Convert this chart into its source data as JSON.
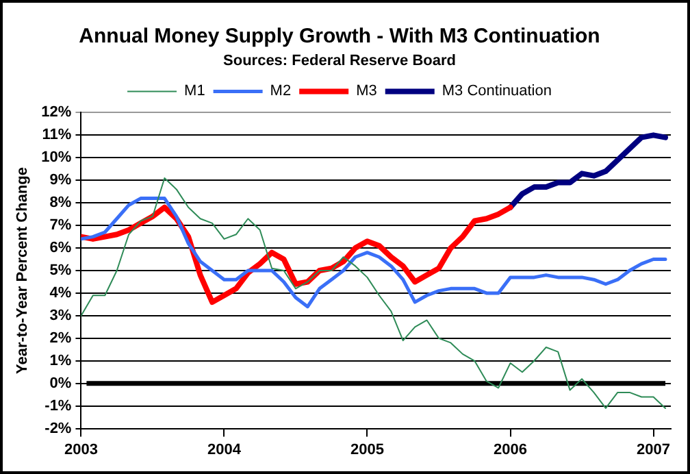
{
  "chart_data": {
    "type": "line",
    "title": "Annual Money Supply Growth - With M3 Continuation",
    "subtitle": "Sources: Federal Reserve Board",
    "ylabel": "Year-to-Year Percent Change",
    "xlim": [
      "2003",
      "2007-02-15"
    ],
    "xticks": [
      "2003",
      "2004",
      "2005",
      "2006",
      "2007"
    ],
    "ylim": [
      -2,
      12
    ],
    "yticks": [
      {
        "value": -2,
        "label": "-2%"
      },
      {
        "value": -1,
        "label": "-1%"
      },
      {
        "value": 0,
        "label": "0%"
      },
      {
        "value": 1,
        "label": "1%"
      },
      {
        "value": 2,
        "label": "2%"
      },
      {
        "value": 3,
        "label": "3%"
      },
      {
        "value": 4,
        "label": "4%"
      },
      {
        "value": 5,
        "label": "5%"
      },
      {
        "value": 6,
        "label": "6%"
      },
      {
        "value": 7,
        "label": "7%"
      },
      {
        "value": 8,
        "label": "8%"
      },
      {
        "value": 9,
        "label": "9%"
      },
      {
        "value": 10,
        "label": "10%"
      },
      {
        "value": 11,
        "label": "11%"
      },
      {
        "value": 12,
        "label": "12%"
      }
    ],
    "x": [
      "2003-01",
      "2003-02",
      "2003-03",
      "2003-04",
      "2003-05",
      "2003-06",
      "2003-07",
      "2003-08",
      "2003-09",
      "2003-10",
      "2003-11",
      "2003-12",
      "2004-01",
      "2004-02",
      "2004-03",
      "2004-04",
      "2004-05",
      "2004-06",
      "2004-07",
      "2004-08",
      "2004-09",
      "2004-10",
      "2004-11",
      "2004-12",
      "2005-01",
      "2005-02",
      "2005-03",
      "2005-04",
      "2005-05",
      "2005-06",
      "2005-07",
      "2005-08",
      "2005-09",
      "2005-10",
      "2005-11",
      "2005-12",
      "2006-01",
      "2006-02",
      "2006-03",
      "2006-04",
      "2006-05",
      "2006-06",
      "2006-07",
      "2006-08",
      "2006-09",
      "2006-10",
      "2006-11",
      "2006-12",
      "2007-01",
      "2007-02"
    ],
    "series": [
      {
        "name": "M1",
        "color": "#2e8b57",
        "values": [
          3.0,
          3.9,
          3.9,
          5.0,
          6.6,
          7.2,
          7.4,
          9.1,
          8.6,
          7.8,
          7.3,
          7.1,
          6.4,
          6.6,
          7.3,
          6.8,
          5.1,
          5.0,
          4.2,
          4.5,
          5.0,
          5.0,
          5.6,
          5.2,
          4.7,
          3.9,
          3.2,
          1.9,
          2.5,
          2.8,
          2.0,
          1.8,
          1.3,
          1.0,
          0.1,
          -0.2,
          0.9,
          0.5,
          1.0,
          1.6,
          1.4,
          -0.3,
          0.2,
          -0.4,
          -1.1,
          -0.4,
          -0.4,
          -0.6,
          -0.6,
          -1.1
        ]
      },
      {
        "name": "M2",
        "color": "#3a6ff7",
        "values": [
          6.4,
          6.5,
          6.7,
          7.3,
          7.9,
          8.2,
          8.2,
          8.2,
          7.4,
          6.2,
          5.4,
          5.0,
          4.6,
          4.6,
          5.0,
          5.0,
          5.0,
          4.5,
          3.8,
          3.4,
          4.2,
          4.6,
          5.0,
          5.6,
          5.8,
          5.6,
          5.2,
          4.6,
          3.6,
          3.9,
          4.1,
          4.2,
          4.2,
          4.2,
          4.0,
          4.0,
          4.7,
          4.7,
          4.7,
          4.8,
          4.7,
          4.7,
          4.7,
          4.6,
          4.4,
          4.6,
          5.0,
          5.3,
          5.5,
          5.5
        ]
      },
      {
        "name": "M3",
        "color": "#ff0000",
        "x": [
          "2003-01",
          "2003-02",
          "2003-03",
          "2003-04",
          "2003-05",
          "2003-06",
          "2003-07",
          "2003-08",
          "2003-09",
          "2003-10",
          "2003-11",
          "2003-12",
          "2004-01",
          "2004-02",
          "2004-03",
          "2004-04",
          "2004-05",
          "2004-06",
          "2004-07",
          "2004-08",
          "2004-09",
          "2004-10",
          "2004-11",
          "2004-12",
          "2005-01",
          "2005-02",
          "2005-03",
          "2005-04",
          "2005-05",
          "2005-06",
          "2005-07",
          "2005-08",
          "2005-09",
          "2005-10",
          "2005-11",
          "2005-12",
          "2006-01"
        ],
        "values": [
          6.5,
          6.4,
          6.5,
          6.6,
          6.8,
          7.1,
          7.4,
          7.8,
          7.3,
          6.5,
          4.8,
          3.6,
          3.9,
          4.2,
          4.9,
          5.3,
          5.8,
          5.5,
          4.4,
          4.5,
          5.0,
          5.1,
          5.4,
          6.0,
          6.3,
          6.1,
          5.6,
          5.2,
          4.5,
          4.8,
          5.1,
          6.0,
          6.5,
          7.2,
          7.3,
          7.5,
          7.8
        ]
      },
      {
        "name": "M3 Continuation",
        "color": "#000080",
        "x": [
          "2006-01",
          "2006-02",
          "2006-03",
          "2006-04",
          "2006-05",
          "2006-06",
          "2006-07",
          "2006-08",
          "2006-09",
          "2006-10",
          "2006-11",
          "2006-12",
          "2007-01",
          "2007-02"
        ],
        "values": [
          7.8,
          8.4,
          8.7,
          8.7,
          8.9,
          8.9,
          9.3,
          9.2,
          9.4,
          9.9,
          10.4,
          10.9,
          11.0,
          10.9
        ]
      }
    ],
    "ref_lines": [
      {
        "axis": "y",
        "value": 0,
        "color": "#000000"
      }
    ],
    "grid": "y",
    "legend": "top",
    "marker": "none",
    "line_style": "solid"
  }
}
